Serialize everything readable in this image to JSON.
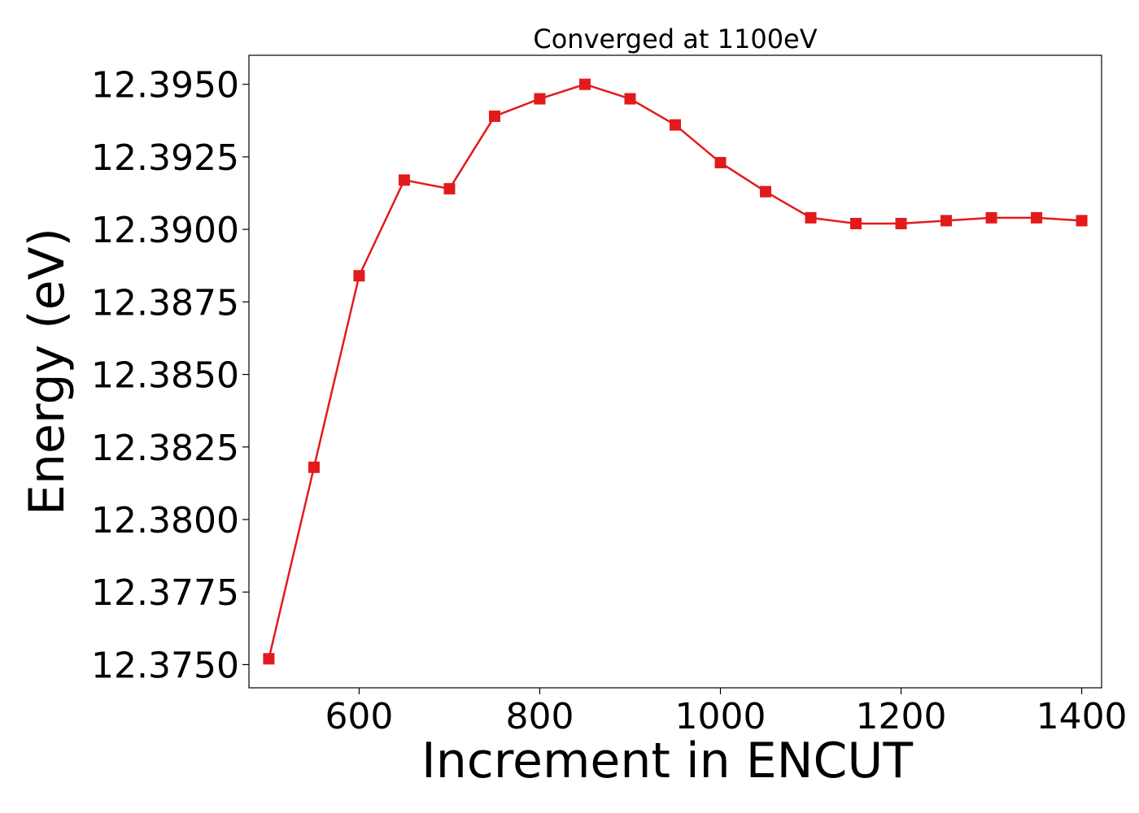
{
  "chart_data": {
    "type": "line",
    "title": "Converged at 1100eV",
    "xlabel": "Increment in ENCUT",
    "ylabel": "Energy (eV)",
    "xlim": [
      478,
      1422
    ],
    "ylim": [
      12.3742,
      12.396
    ],
    "xticks": [
      600,
      800,
      1000,
      1200,
      1400
    ],
    "xtick_labels": [
      "600",
      "800",
      "1000",
      "1200",
      "1400"
    ],
    "yticks": [
      12.375,
      12.3775,
      12.38,
      12.3825,
      12.385,
      12.3875,
      12.39,
      12.3925,
      12.395
    ],
    "ytick_labels": [
      "12.3750",
      "12.3775",
      "12.3800",
      "12.3825",
      "12.3850",
      "12.3875",
      "12.3900",
      "12.3925",
      "12.3950"
    ],
    "grid": false,
    "series": [
      {
        "color": "#e31a1c",
        "marker": "square",
        "x": [
          500,
          550,
          600,
          650,
          700,
          750,
          800,
          850,
          900,
          950,
          1000,
          1050,
          1100,
          1150,
          1200,
          1250,
          1300,
          1350,
          1400
        ],
        "y": [
          12.3752,
          12.3818,
          12.3884,
          12.3917,
          12.3914,
          12.3939,
          12.3945,
          12.395,
          12.3945,
          12.3936,
          12.3923,
          12.3913,
          12.3904,
          12.3902,
          12.3902,
          12.3903,
          12.3904,
          12.3904,
          12.3903
        ]
      }
    ]
  }
}
